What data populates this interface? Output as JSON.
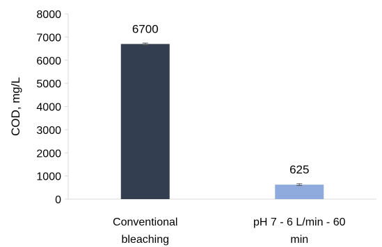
{
  "chart_data": {
    "type": "bar",
    "categories": [
      [
        "Conventional",
        "bleaching"
      ],
      [
        "pH 7 - 6 L/min - 60",
        "min"
      ]
    ],
    "values": [
      6700,
      625
    ],
    "data_labels": [
      "6700",
      "625"
    ],
    "error_bars": [
      40,
      40
    ],
    "bar_colors": [
      "#333f50",
      "#8faadc"
    ],
    "title": "",
    "xlabel": "",
    "ylabel": "COD, mg/L",
    "ylim": [
      0,
      8000
    ],
    "yticks": [
      0,
      1000,
      2000,
      3000,
      4000,
      5000,
      6000,
      7000,
      8000
    ],
    "grid": false,
    "legend": "none"
  }
}
